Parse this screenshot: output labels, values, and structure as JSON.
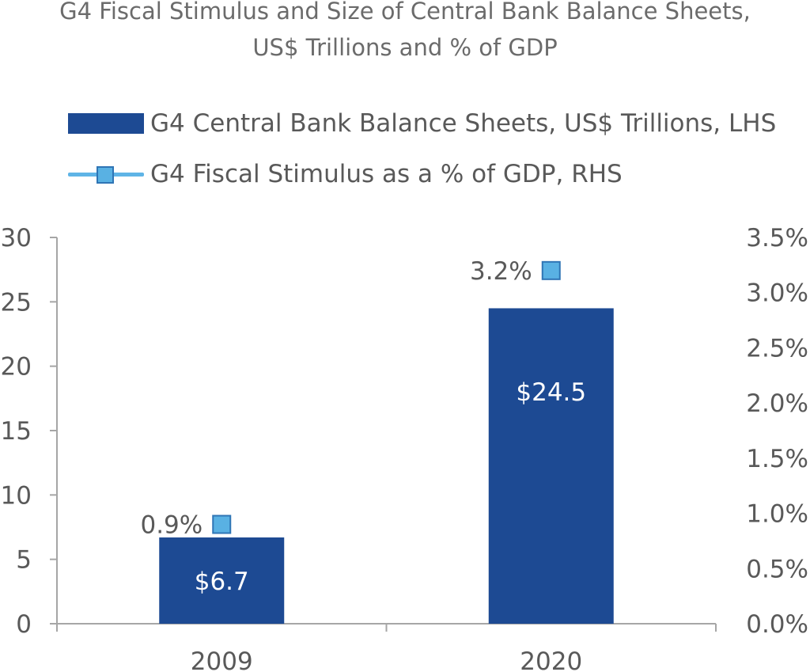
{
  "chart_data": {
    "type": "bar",
    "title": "G4 Fiscal Stimulus and Size of Central Bank Balance Sheets,",
    "subtitle": "US$ Trillions and % of GDP",
    "categories": [
      "2009",
      "2020"
    ],
    "series": [
      {
        "name": "G4 Central Bank Balance Sheets, US$ Trillions, LHS",
        "type": "bar",
        "axis": "left",
        "values": [
          6.7,
          24.5
        ],
        "data_labels": [
          "$6.7",
          "$24.5"
        ],
        "color": "#1d4a93"
      },
      {
        "name": "G4 Fiscal Stimulus as a % of GDP, RHS",
        "type": "line-markers",
        "axis": "right",
        "values": [
          0.9,
          3.2
        ],
        "data_labels": [
          "0.9%",
          "3.2%"
        ],
        "color": "#59b1e3"
      }
    ],
    "left_axis": {
      "ylim": [
        0,
        30
      ],
      "ticks": [
        "0",
        "5",
        "10",
        "15",
        "20",
        "25",
        "30"
      ]
    },
    "right_axis": {
      "ylim": [
        0,
        3.5
      ],
      "ticks": [
        "0.0%",
        "0.5%",
        "1.0%",
        "1.5%",
        "2.0%",
        "2.5%",
        "3.0%",
        "3.5%"
      ]
    },
    "grid": false,
    "legend_position": "top"
  }
}
